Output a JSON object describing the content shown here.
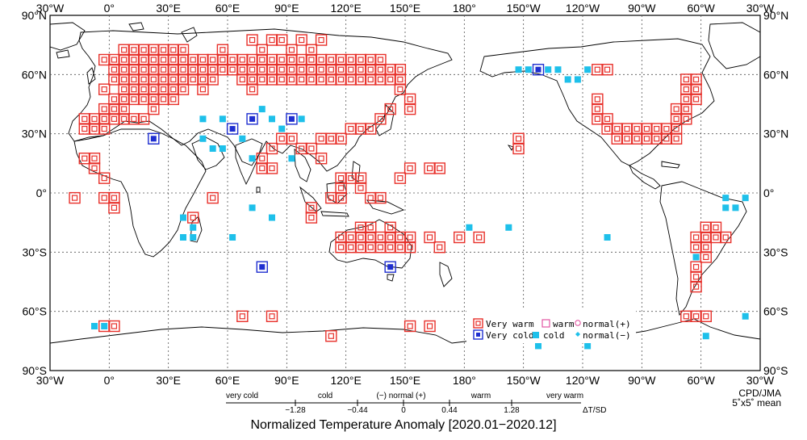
{
  "map": {
    "lat_labels_left": [
      "90°N",
      "60°N",
      "30°N",
      "0°",
      "30°S",
      "60°S",
      "90°S"
    ],
    "lat_labels_right": [
      "90°N",
      "60°N",
      "30°N",
      "0°",
      "30°S",
      "60°S",
      "90°S"
    ],
    "lon_labels_top": [
      "30°W",
      "0°",
      "30°E",
      "60°E",
      "90°E",
      "120°E",
      "150°E",
      "180°",
      "150°W",
      "120°W",
      "90°W",
      "60°W",
      "30°W"
    ],
    "lon_labels_bottom": [
      "30°W",
      "0°",
      "30°E",
      "60°E",
      "90°E",
      "120°E",
      "150°E",
      "180°",
      "150°W",
      "120°W",
      "90°W",
      "60°W",
      "30°W"
    ],
    "lon_range": [
      -30,
      330
    ],
    "lat_range": [
      -90,
      90
    ],
    "grid_step_deg": 30,
    "cell_size_deg": 5,
    "colors": {
      "very_warm": "#e8302a",
      "warm": "#e0489a",
      "normal_plus": "#e0489a",
      "very_cold": "#1f2fd0",
      "cold": "#1ec0ea",
      "normal_minus": "#1ec0ea",
      "land": "#000000",
      "grid": "#555555"
    },
    "cells": {
      "very_warm": [
        [
          -15,
          30
        ],
        [
          -15,
          15
        ],
        [
          -10,
          15
        ],
        [
          -10,
          10
        ],
        [
          -5,
          5
        ],
        [
          -5,
          35
        ],
        [
          -5,
          50
        ],
        [
          -5,
          65
        ],
        [
          0,
          40
        ],
        [
          0,
          45
        ],
        [
          0,
          55
        ],
        [
          0,
          60
        ],
        [
          0,
          65
        ],
        [
          5,
          40
        ],
        [
          5,
          45
        ],
        [
          5,
          50
        ],
        [
          5,
          55
        ],
        [
          5,
          60
        ],
        [
          5,
          65
        ],
        [
          5,
          70
        ],
        [
          10,
          45
        ],
        [
          10,
          50
        ],
        [
          10,
          55
        ],
        [
          10,
          60
        ],
        [
          10,
          65
        ],
        [
          10,
          70
        ],
        [
          15,
          45
        ],
        [
          15,
          50
        ],
        [
          15,
          55
        ],
        [
          15,
          60
        ],
        [
          15,
          65
        ],
        [
          15,
          70
        ],
        [
          15,
          35
        ],
        [
          20,
          40
        ],
        [
          20,
          45
        ],
        [
          20,
          50
        ],
        [
          20,
          55
        ],
        [
          20,
          60
        ],
        [
          20,
          65
        ],
        [
          20,
          70
        ],
        [
          25,
          45
        ],
        [
          25,
          50
        ],
        [
          25,
          55
        ],
        [
          25,
          60
        ],
        [
          25,
          65
        ],
        [
          25,
          70
        ],
        [
          30,
          45
        ],
        [
          30,
          50
        ],
        [
          30,
          55
        ],
        [
          30,
          60
        ],
        [
          30,
          65
        ],
        [
          30,
          70
        ],
        [
          35,
          50
        ],
        [
          35,
          55
        ],
        [
          35,
          60
        ],
        [
          35,
          65
        ],
        [
          35,
          70
        ],
        [
          40,
          55
        ],
        [
          40,
          60
        ],
        [
          40,
          65
        ],
        [
          45,
          50
        ],
        [
          45,
          55
        ],
        [
          45,
          60
        ],
        [
          45,
          65
        ],
        [
          50,
          55
        ],
        [
          50,
          60
        ],
        [
          50,
          65
        ],
        [
          55,
          60
        ],
        [
          55,
          65
        ],
        [
          55,
          70
        ],
        [
          60,
          60
        ],
        [
          60,
          65
        ],
        [
          65,
          55
        ],
        [
          65,
          60
        ],
        [
          65,
          65
        ],
        [
          70,
          50
        ],
        [
          70,
          55
        ],
        [
          70,
          60
        ],
        [
          70,
          65
        ],
        [
          70,
          75
        ],
        [
          75,
          55
        ],
        [
          75,
          60
        ],
        [
          75,
          65
        ],
        [
          75,
          70
        ],
        [
          80,
          55
        ],
        [
          80,
          60
        ],
        [
          80,
          65
        ],
        [
          80,
          75
        ],
        [
          85,
          55
        ],
        [
          85,
          60
        ],
        [
          85,
          65
        ],
        [
          85,
          75
        ],
        [
          90,
          55
        ],
        [
          90,
          60
        ],
        [
          90,
          65
        ],
        [
          90,
          70
        ],
        [
          95,
          55
        ],
        [
          95,
          60
        ],
        [
          95,
          65
        ],
        [
          95,
          75
        ],
        [
          100,
          55
        ],
        [
          100,
          60
        ],
        [
          100,
          65
        ],
        [
          100,
          70
        ],
        [
          105,
          55
        ],
        [
          105,
          60
        ],
        [
          105,
          65
        ],
        [
          105,
          75
        ],
        [
          110,
          55
        ],
        [
          110,
          60
        ],
        [
          110,
          65
        ],
        [
          115,
          55
        ],
        [
          115,
          60
        ],
        [
          115,
          65
        ],
        [
          120,
          55
        ],
        [
          120,
          60
        ],
        [
          120,
          65
        ],
        [
          125,
          55
        ],
        [
          125,
          60
        ],
        [
          125,
          65
        ],
        [
          130,
          55
        ],
        [
          130,
          60
        ],
        [
          130,
          65
        ],
        [
          135,
          55
        ],
        [
          135,
          60
        ],
        [
          135,
          65
        ],
        [
          140,
          55
        ],
        [
          140,
          60
        ],
        [
          145,
          55
        ],
        [
          145,
          60
        ],
        [
          145,
          50
        ],
        [
          150,
          45
        ],
        [
          150,
          40
        ],
        [
          140,
          40
        ],
        [
          135,
          35
        ],
        [
          130,
          30
        ],
        [
          125,
          30
        ],
        [
          120,
          30
        ],
        [
          115,
          25
        ],
        [
          110,
          25
        ],
        [
          105,
          25
        ],
        [
          100,
          20
        ],
        [
          105,
          15
        ],
        [
          95,
          20
        ],
        [
          90,
          25
        ],
        [
          85,
          25
        ],
        [
          80,
          20
        ],
        [
          80,
          10
        ],
        [
          75,
          15
        ],
        [
          75,
          10
        ],
        [
          120,
          -25
        ],
        [
          115,
          -25
        ],
        [
          115,
          -30
        ],
        [
          120,
          -30
        ],
        [
          125,
          -25
        ],
        [
          125,
          -30
        ],
        [
          130,
          -25
        ],
        [
          130,
          -30
        ],
        [
          135,
          -25
        ],
        [
          135,
          -30
        ],
        [
          140,
          -25
        ],
        [
          140,
          -30
        ],
        [
          145,
          -25
        ],
        [
          145,
          -30
        ],
        [
          150,
          -25
        ],
        [
          150,
          -30
        ],
        [
          130,
          -20
        ],
        [
          125,
          -20
        ],
        [
          140,
          -20
        ],
        [
          -15,
          35
        ],
        [
          -10,
          35
        ],
        [
          -10,
          30
        ],
        [
          -5,
          30
        ],
        [
          -5,
          40
        ],
        [
          0,
          35
        ],
        [
          5,
          35
        ],
        [
          10,
          35
        ],
        [
          65,
          -65
        ],
        [
          80,
          -65
        ],
        [
          110,
          -75
        ],
        [
          -5,
          -70
        ],
        [
          0,
          -70
        ],
        [
          150,
          -70
        ],
        [
          160,
          -70
        ],
        [
          245,
          45
        ],
        [
          245,
          40
        ],
        [
          245,
          35
        ],
        [
          250,
          35
        ],
        [
          250,
          30
        ],
        [
          255,
          30
        ],
        [
          255,
          25
        ],
        [
          260,
          30
        ],
        [
          260,
          25
        ],
        [
          265,
          25
        ],
        [
          265,
          30
        ],
        [
          270,
          25
        ],
        [
          270,
          30
        ],
        [
          275,
          30
        ],
        [
          275,
          25
        ],
        [
          280,
          30
        ],
        [
          280,
          25
        ],
        [
          285,
          25
        ],
        [
          285,
          30
        ],
        [
          285,
          35
        ],
        [
          285,
          40
        ],
        [
          290,
          40
        ],
        [
          290,
          45
        ],
        [
          290,
          50
        ],
        [
          290,
          35
        ],
        [
          295,
          45
        ],
        [
          295,
          50
        ],
        [
          290,
          55
        ],
        [
          295,
          55
        ],
        [
          245,
          60
        ],
        [
          250,
          60
        ],
        [
          295,
          -25
        ],
        [
          300,
          -25
        ],
        [
          305,
          -25
        ],
        [
          310,
          -25
        ],
        [
          300,
          -20
        ],
        [
          305,
          -20
        ],
        [
          295,
          -30
        ],
        [
          300,
          -30
        ],
        [
          300,
          -35
        ],
        [
          295,
          -40
        ],
        [
          295,
          -45
        ],
        [
          295,
          -50
        ],
        [
          290,
          -65
        ],
        [
          295,
          -65
        ],
        [
          300,
          -65
        ],
        [
          205,
          25
        ],
        [
          205,
          20
        ],
        [
          185,
          -25
        ],
        [
          -5,
          -5
        ],
        [
          0,
          -5
        ],
        [
          0,
          -10
        ],
        [
          40,
          -15
        ],
        [
          100,
          -15
        ],
        [
          100,
          -10
        ],
        [
          110,
          -5
        ],
        [
          115,
          -5
        ],
        [
          115,
          0
        ],
        [
          115,
          5
        ],
        [
          125,
          0
        ],
        [
          120,
          5
        ],
        [
          125,
          5
        ],
        [
          130,
          -5
        ],
        [
          135,
          -5
        ],
        [
          145,
          5
        ],
        [
          150,
          10
        ],
        [
          160,
          10
        ],
        [
          165,
          10
        ],
        [
          175,
          -25
        ],
        [
          160,
          -25
        ],
        [
          165,
          -30
        ],
        [
          -20,
          -5
        ],
        [
          50,
          -5
        ]
      ],
      "warm": [],
      "normal_plus": [],
      "very_cold": [
        [
          20,
          25
        ],
        [
          70,
          35
        ],
        [
          60,
          30
        ],
        [
          90,
          35
        ],
        [
          75,
          -40
        ],
        [
          140,
          -40
        ],
        [
          215,
          60
        ]
      ],
      "cold": [
        [
          45,
          35
        ],
        [
          55,
          35
        ],
        [
          75,
          40
        ],
        [
          80,
          35
        ],
        [
          90,
          15
        ],
        [
          95,
          35
        ],
        [
          55,
          20
        ],
        [
          60,
          -25
        ],
        [
          35,
          -15
        ],
        [
          40,
          -20
        ],
        [
          35,
          -25
        ],
        [
          -5,
          -70
        ],
        [
          -10,
          -70
        ],
        [
          80,
          -15
        ],
        [
          70,
          15
        ],
        [
          70,
          -10
        ],
        [
          205,
          60
        ],
        [
          210,
          60
        ],
        [
          220,
          60
        ],
        [
          225,
          60
        ],
        [
          230,
          55
        ],
        [
          235,
          55
        ],
        [
          240,
          60
        ],
        [
          310,
          -5
        ],
        [
          310,
          -10
        ],
        [
          315,
          -10
        ],
        [
          320,
          -5
        ],
        [
          250,
          -25
        ],
        [
          300,
          -75
        ],
        [
          215,
          -80
        ],
        [
          180,
          -20
        ],
        [
          200,
          -20
        ],
        [
          240,
          -80
        ],
        [
          320,
          -65
        ],
        [
          295,
          -35
        ],
        [
          85,
          30
        ],
        [
          65,
          25
        ],
        [
          50,
          20
        ],
        [
          45,
          25
        ],
        [
          40,
          -25
        ]
      ],
      "normal_minus": []
    }
  },
  "legend": {
    "very_warm": "Very warm",
    "warm": "warm",
    "normal_plus": "normal(+)",
    "very_cold": "Very cold",
    "cold": "cold",
    "normal_minus": "normal(−)"
  },
  "scale": {
    "categories": [
      "very cold",
      "cold",
      "(−) normal (+)",
      "warm",
      "very warm"
    ],
    "ticks": [
      "−1.28",
      "−0.44",
      "0",
      "0.44",
      "1.28"
    ],
    "unit": "ΔT/SD"
  },
  "title": "Normalized Temperature Anomaly [2020.01−2020.12]",
  "credit_line1": "CPD/JMA",
  "credit_line2": "5˚x5˚ mean"
}
